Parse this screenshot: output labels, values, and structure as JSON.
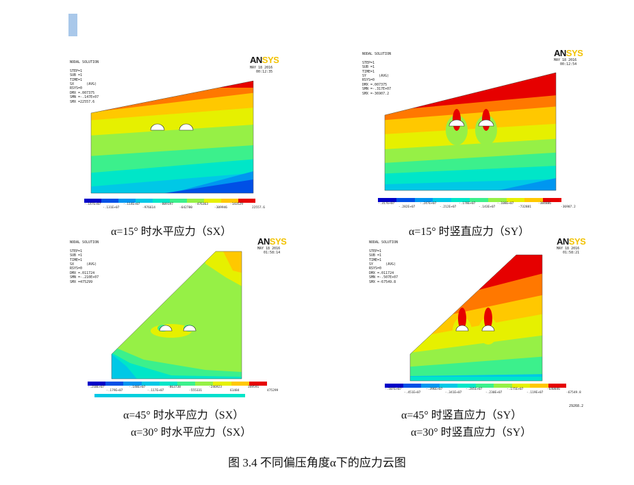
{
  "brand": {
    "logo_an": "AN",
    "logo_sys": "SYS"
  },
  "panels": [
    {
      "info": "NODAL SOLUTION\n\nSTEP=1\nSUB =1\nTIME=1\nSX      (AVG)\nRSYS=0\nDMX =.007375\nSMN =-.147E+07\nSMX =22557.6",
      "stamp": "MAY 18 2016\n00:12:35",
      "legend_top": [
        "-.147E+07",
        "-.114E+07",
        "-809197",
        "-476363",
        "-143529"
      ],
      "legend_bottom": [
        "-.131E+07",
        "-976614",
        "-642780",
        "-309946",
        "22557.6"
      ],
      "caption": "α=15° 时水平应力（SX）"
    },
    {
      "info": "NODAL SOLUTION\n\nSTEP=1\nSUB =1\nTIME=1\nSY      (AVG)\nRSYS=0\nDMX =.007375\nSMN =-.317E+07\nSMX =-36907.2",
      "stamp": "MAY 18 2016\n00:12:54",
      "legend_top": [
        "-.317E+07",
        "-.247E+07",
        "-.178E+07",
        "-.108E+07",
        "-384886"
      ],
      "legend_bottom": [
        "-.282E+07",
        "-.212E+07",
        "-.143E+07",
        "-732881",
        "-36907.2"
      ],
      "caption": "α=15° 时竖直应力（SY）"
    },
    {
      "info": "NODAL SOLUTION\n\nSTEP=1\nSUB =1\nTIME=1\nSX      (AVG)\nRSYS=0\nDMX =.011724\nSMN =-.210E+07\nSMX =475299",
      "stamp": "MAY 18 2016\n01:58:14",
      "legend_top": [
        "-.210E+07",
        "-.148E+07",
        "-863738",
        "-246923",
        "349591"
      ],
      "legend_bottom": [
        "-.179E+07",
        "-.117E+07",
        "-555331",
        "61484",
        "475299"
      ],
      "caption": "α=45° 时水平应力（SX）",
      "caption2": "α=30° 时水平应力（SX）"
    },
    {
      "info": "NODAL SOLUTION\n\nSTEP=1\nSUB =1\nTIME=1\nSY      (AVG)\nRSYS=0\nDMX =.011724\nSMN =-.507E+07\nSMX =-67549.8",
      "stamp": "MAY 18 2016\n01:58:21",
      "legend_top": [
        "-.507E+07",
        "-.396E+07",
        "-.285E+07",
        "-.175E+07",
        "-640846"
      ],
      "legend_bottom": [
        "-.451E+07",
        "-.341E+07",
        "-.230E+07",
        "-.119E+07",
        "-67549.8"
      ],
      "extra": "29268.2",
      "caption": "α=45° 时竖直应力（SY）",
      "caption2": "α=30° 时竖直应力（SY）"
    }
  ],
  "figure_caption": "图 3.4  不同偏压角度α下的应力云图",
  "colors": {
    "contour": [
      "#0000c8",
      "#0050e6",
      "#0096f0",
      "#00c8e6",
      "#00e6c8",
      "#3cf08c",
      "#96f046",
      "#e6f000",
      "#ffc800",
      "#ff7800",
      "#e60000"
    ]
  }
}
